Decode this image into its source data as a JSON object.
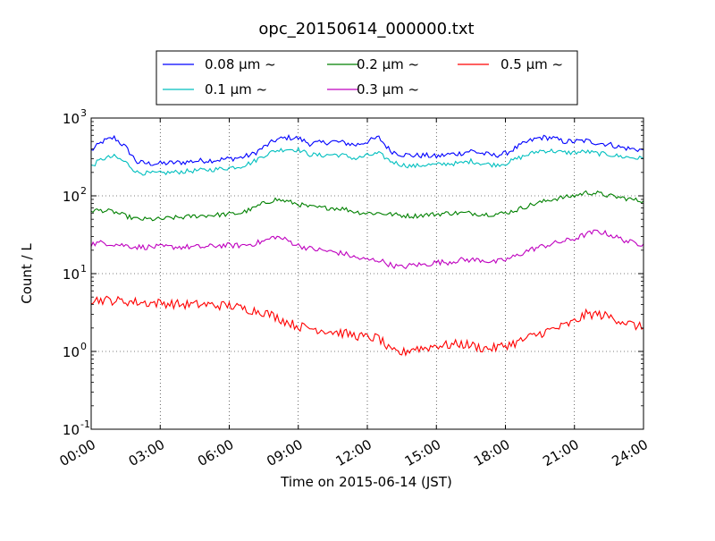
{
  "chart_data": {
    "type": "line",
    "title": "opc_20150614_000000.txt",
    "xlabel": "Time on 2015-06-14 (JST)",
    "ylabel": "Count / L",
    "yscale": "log",
    "xlim": [
      "00:00",
      "24:00"
    ],
    "ylim": [
      0.1,
      1000
    ],
    "grid": true,
    "legend_position": "top-center",
    "x_ticks": [
      "00:00",
      "03:00",
      "06:00",
      "09:00",
      "12:00",
      "15:00",
      "18:00",
      "21:00",
      "24:00"
    ],
    "y_ticks": [
      {
        "base": "10",
        "exp": "-1",
        "value": 0.1
      },
      {
        "base": "10",
        "exp": "0",
        "value": 1
      },
      {
        "base": "10",
        "exp": "1",
        "value": 10
      },
      {
        "base": "10",
        "exp": "2",
        "value": 100
      },
      {
        "base": "10",
        "exp": "3",
        "value": 1000
      }
    ],
    "x": [
      "00:00",
      "00:30",
      "01:00",
      "01:30",
      "02:00",
      "02:30",
      "03:00",
      "03:30",
      "04:00",
      "04:30",
      "05:00",
      "05:30",
      "06:00",
      "06:30",
      "07:00",
      "07:30",
      "08:00",
      "08:30",
      "09:00",
      "09:30",
      "10:00",
      "10:30",
      "11:00",
      "11:30",
      "12:00",
      "12:30",
      "13:00",
      "13:30",
      "14:00",
      "14:30",
      "15:00",
      "15:30",
      "16:00",
      "16:30",
      "17:00",
      "17:30",
      "18:00",
      "18:30",
      "19:00",
      "19:30",
      "20:00",
      "20:30",
      "21:00",
      "21:30",
      "22:00",
      "22:30",
      "23:00",
      "23:30",
      "24:00"
    ],
    "series": [
      {
        "name": "0.08 μm ~",
        "color": "#0000ff",
        "values": [
          380,
          500,
          560,
          420,
          270,
          260,
          260,
          265,
          270,
          280,
          285,
          290,
          300,
          310,
          340,
          420,
          520,
          560,
          550,
          470,
          480,
          500,
          480,
          450,
          500,
          560,
          380,
          340,
          330,
          330,
          320,
          340,
          350,
          380,
          350,
          330,
          350,
          420,
          500,
          560,
          560,
          500,
          500,
          510,
          480,
          460,
          420,
          400,
          390
        ]
      },
      {
        "name": "0.1 μm ~",
        "color": "#00bfbf",
        "values": [
          240,
          300,
          320,
          270,
          200,
          195,
          195,
          200,
          205,
          210,
          215,
          220,
          230,
          240,
          270,
          330,
          380,
          400,
          390,
          340,
          330,
          340,
          330,
          300,
          330,
          350,
          280,
          250,
          240,
          250,
          250,
          260,
          260,
          280,
          260,
          250,
          260,
          300,
          340,
          380,
          380,
          360,
          360,
          370,
          350,
          340,
          320,
          310,
          300
        ]
      },
      {
        "name": "0.2 μm ~",
        "color": "#008000",
        "values": [
          65,
          65,
          62,
          55,
          50,
          50,
          50,
          52,
          53,
          55,
          56,
          57,
          58,
          60,
          68,
          80,
          90,
          85,
          78,
          72,
          70,
          70,
          68,
          62,
          60,
          60,
          58,
          56,
          55,
          57,
          58,
          60,
          60,
          60,
          58,
          58,
          60,
          66,
          75,
          82,
          90,
          95,
          100,
          110,
          108,
          100,
          95,
          90,
          85
        ]
      },
      {
        "name": "0.3 μm ~",
        "color": "#bf00bf",
        "values": [
          24,
          25,
          24,
          23,
          22,
          22,
          22,
          22,
          22,
          22,
          22,
          23,
          23,
          23,
          24,
          26,
          30,
          27,
          23,
          21,
          20,
          19,
          18,
          16,
          15,
          15,
          13,
          12,
          13,
          13,
          14,
          14,
          15,
          15,
          15,
          14,
          15,
          17,
          20,
          22,
          24,
          26,
          28,
          32,
          35,
          32,
          28,
          25,
          24
        ]
      },
      {
        "name": "0.5 μm ~",
        "color": "#ff0000",
        "values": [
          4.6,
          4.6,
          4.5,
          4.4,
          4.3,
          4.2,
          4.2,
          4.1,
          4.0,
          4.0,
          4.0,
          3.9,
          3.9,
          3.6,
          3.4,
          3.2,
          2.8,
          2.4,
          2.1,
          2.0,
          1.9,
          1.8,
          1.7,
          1.6,
          1.5,
          1.5,
          1.0,
          0.95,
          1.1,
          1.1,
          1.2,
          1.2,
          1.25,
          1.2,
          1.1,
          1.1,
          1.2,
          1.3,
          1.5,
          1.7,
          1.9,
          2.1,
          2.4,
          3.0,
          3.0,
          2.8,
          2.5,
          2.2,
          2.0
        ]
      }
    ]
  }
}
